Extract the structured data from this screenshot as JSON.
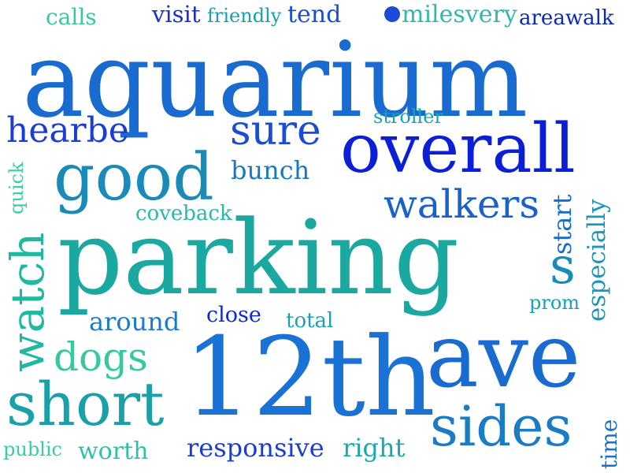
{
  "words": [
    {
      "text": "aquarium",
      "color": "#1a6bd0"
    },
    {
      "text": "parking",
      "color": "#1aa8a0"
    },
    {
      "text": "12th",
      "color": "#1a72d4"
    },
    {
      "text": "ave",
      "color": "#1a6bd0"
    },
    {
      "text": "overall",
      "color": "#0a1fd6"
    },
    {
      "text": "good",
      "color": "#1a8ab8"
    },
    {
      "text": "short",
      "color": "#1aa0a8"
    },
    {
      "text": "sides",
      "color": "#1a7cc4"
    },
    {
      "text": "sure",
      "color": "#1a4cd4"
    },
    {
      "text": "hearbe",
      "color": "#1a3ed2"
    },
    {
      "text": "walkers",
      "color": "#1a62c8"
    },
    {
      "text": "watch",
      "color": "#20b8a0"
    },
    {
      "text": "s",
      "color": "#1a8ab8"
    },
    {
      "text": "dogs",
      "color": "#36c8a0"
    },
    {
      "text": "bunch",
      "color": "#1a78bc"
    },
    {
      "text": "around",
      "color": "#1a7ad0"
    },
    {
      "text": "close",
      "color": "#0a28d8"
    },
    {
      "text": "total",
      "color": "#1aa0b4"
    },
    {
      "text": "coveback",
      "color": "#2ab8a8"
    },
    {
      "text": "stroller",
      "color": "#1aa0b8"
    },
    {
      "text": "quick",
      "color": "#3cd0a0"
    },
    {
      "text": "start",
      "color": "#1a6cd0"
    },
    {
      "text": "especially",
      "color": "#1a98b8"
    },
    {
      "text": "prom",
      "color": "#1aa0b8"
    },
    {
      "text": "calls",
      "color": "#36c8a0"
    },
    {
      "text": "visit",
      "color": "#1a2fd0"
    },
    {
      "text": "friendly",
      "color": "#1aa0a8"
    },
    {
      "text": "tend",
      "color": "#1a4cd8"
    },
    {
      "text": "milesvery",
      "color": "#30b8a8"
    },
    {
      "text": "areawalk",
      "color": "#0a28c0"
    },
    {
      "text": "responsive",
      "color": "#1a3cd0"
    },
    {
      "text": "right",
      "color": "#1aa8b0"
    },
    {
      "text": "public",
      "color": "#36d098"
    },
    {
      "text": "worth",
      "color": "#30c0a8"
    },
    {
      "text": "time",
      "color": "#1a72c8"
    }
  ],
  "bullet_color": "#1a4cd8"
}
